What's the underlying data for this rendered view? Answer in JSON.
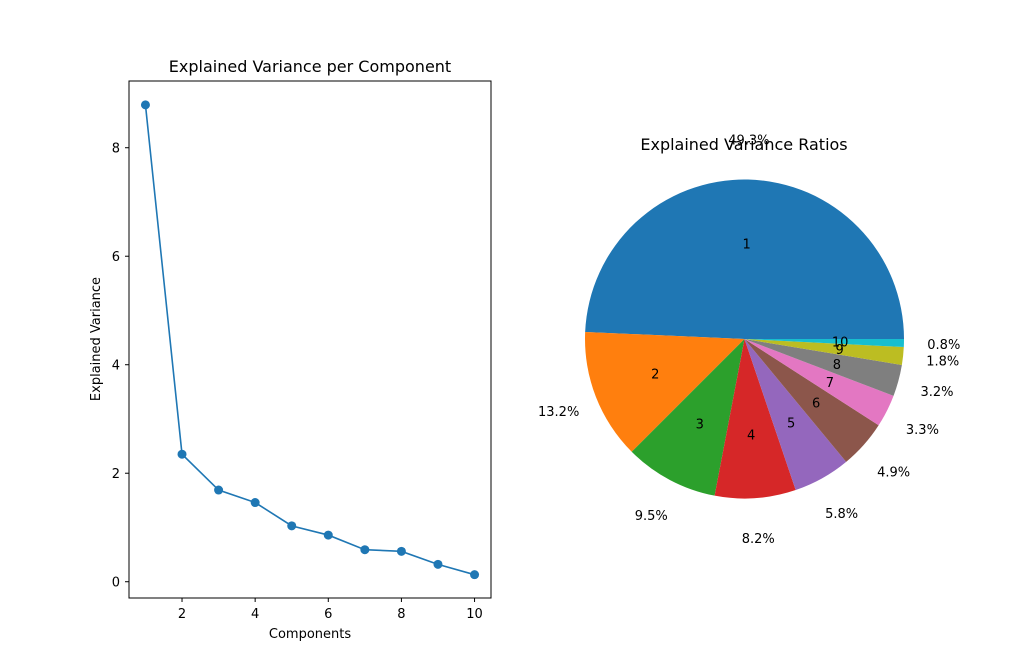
{
  "chart_data": [
    {
      "type": "line",
      "title": "Explained Variance per Component",
      "xlabel": "Components",
      "ylabel": "Explained Variance",
      "xlim": [
        0.55,
        10.45
      ],
      "ylim": [
        -0.3,
        9.23
      ],
      "xticks": [
        2,
        4,
        6,
        8,
        10
      ],
      "yticks": [
        0,
        2,
        4,
        6,
        8
      ],
      "grid": false,
      "color": "#1f77b4",
      "x": [
        1,
        2,
        3,
        4,
        5,
        6,
        7,
        8,
        9,
        10
      ],
      "y": [
        8.79,
        2.35,
        1.69,
        1.46,
        1.03,
        0.86,
        0.59,
        0.56,
        0.32,
        0.13
      ]
    },
    {
      "type": "pie",
      "title": "Explained Variance Ratios",
      "labels": [
        "1",
        "2",
        "3",
        "4",
        "5",
        "6",
        "7",
        "8",
        "9",
        "10"
      ],
      "values": [
        49.3,
        13.2,
        9.5,
        8.2,
        5.8,
        4.9,
        3.3,
        3.2,
        1.8,
        0.8
      ],
      "percent_labels": [
        "49.3%",
        "13.2%",
        "9.5%",
        "8.2%",
        "5.8%",
        "4.9%",
        "3.3%",
        "3.2%",
        "1.8%",
        "0.8%"
      ],
      "colors": [
        "#1f77b4",
        "#ff7f0e",
        "#2ca02c",
        "#d62728",
        "#9467bd",
        "#8c564b",
        "#e377c2",
        "#7f7f7f",
        "#bcbd22",
        "#17becf"
      ]
    }
  ]
}
